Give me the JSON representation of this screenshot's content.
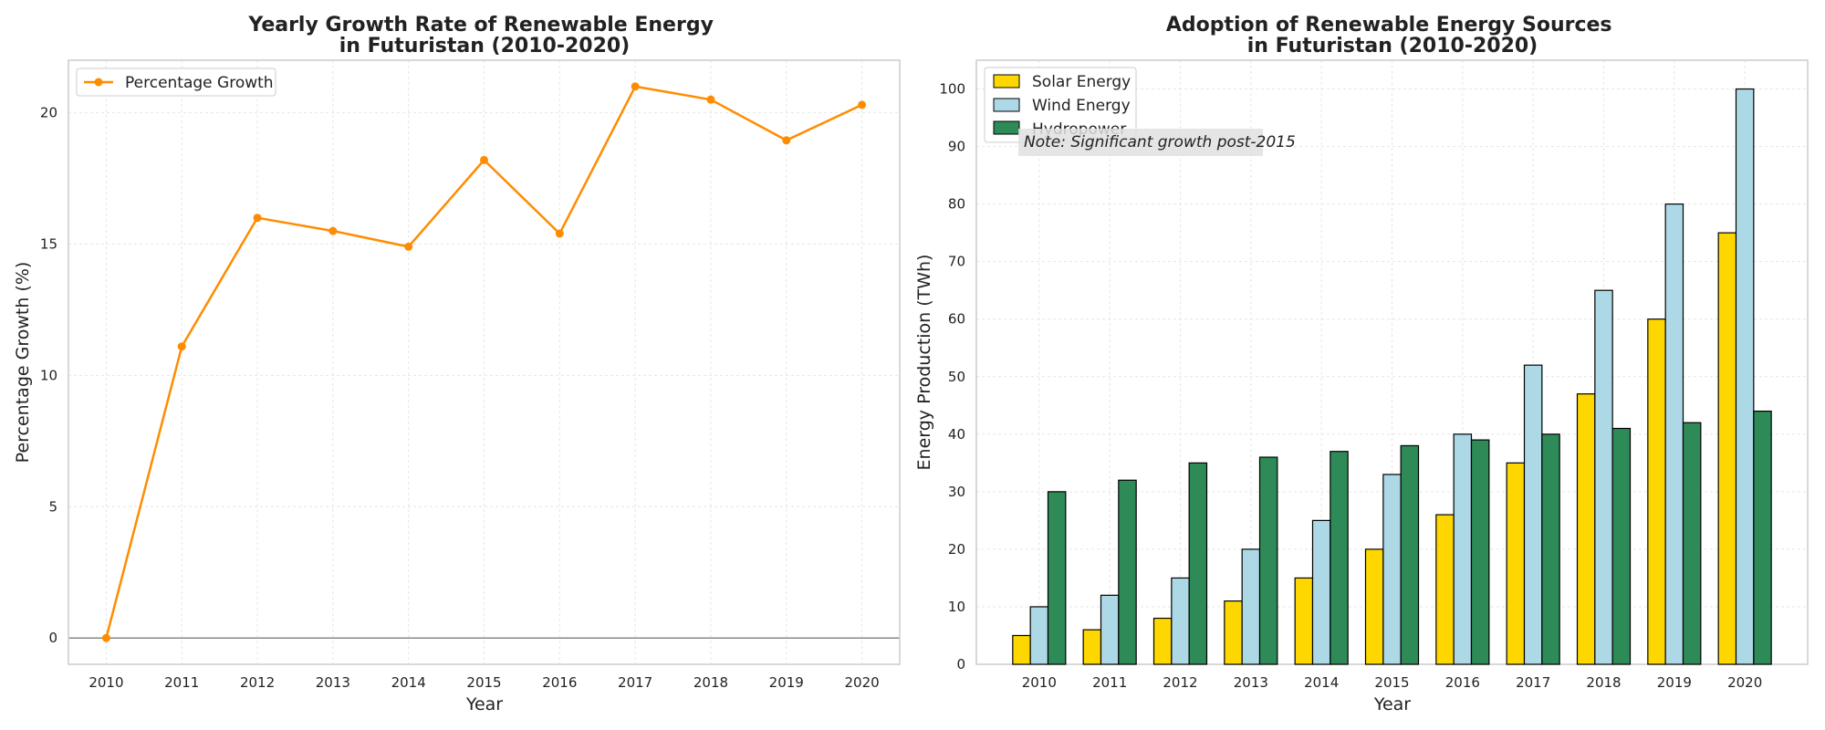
{
  "chart_data": [
    {
      "type": "line",
      "title": "Yearly Growth Rate of Renewable Energy\nin Futuristan (2010-2020)",
      "xlabel": "Year",
      "ylabel": "Percentage Growth (%)",
      "x": [
        2010,
        2011,
        2012,
        2013,
        2014,
        2015,
        2016,
        2017,
        2018,
        2019,
        2020
      ],
      "series": [
        {
          "name": "Percentage Growth",
          "values": [
            0.0,
            11.1,
            16.0,
            15.5,
            14.9,
            18.2,
            15.4,
            21.0,
            20.5,
            18.95,
            20.3
          ],
          "color": "#ff8c00"
        }
      ],
      "yticks": [
        0,
        5,
        10,
        15,
        20
      ],
      "ylim": [
        -1.0,
        22.0
      ],
      "reference_line": 0,
      "grid": true,
      "legend": "upper-left"
    },
    {
      "type": "bar",
      "title": "Adoption of Renewable Energy Sources\nin Futuristan (2010-2020)",
      "xlabel": "Year",
      "ylabel": "Energy Production (TWh)",
      "categories": [
        "2010",
        "2011",
        "2012",
        "2013",
        "2014",
        "2015",
        "2016",
        "2017",
        "2018",
        "2019",
        "2020"
      ],
      "series": [
        {
          "name": "Solar Energy",
          "values": [
            5,
            6,
            8,
            11,
            15,
            20,
            26,
            35,
            47,
            60,
            75
          ],
          "color": "#ffd700"
        },
        {
          "name": "Wind Energy",
          "values": [
            10,
            12,
            15,
            20,
            25,
            33,
            40,
            52,
            65,
            80,
            100
          ],
          "color": "#add8e6"
        },
        {
          "name": "Hydropower",
          "values": [
            30,
            32,
            35,
            36,
            37,
            38,
            39,
            40,
            41,
            42,
            44
          ],
          "color": "#2e8b57"
        }
      ],
      "yticks": [
        0,
        10,
        20,
        30,
        40,
        50,
        60,
        70,
        80,
        90,
        100
      ],
      "ylim": [
        0,
        105
      ],
      "annotation": "Note: Significant growth post-2015",
      "grid": true,
      "legend": "upper-left"
    }
  ]
}
